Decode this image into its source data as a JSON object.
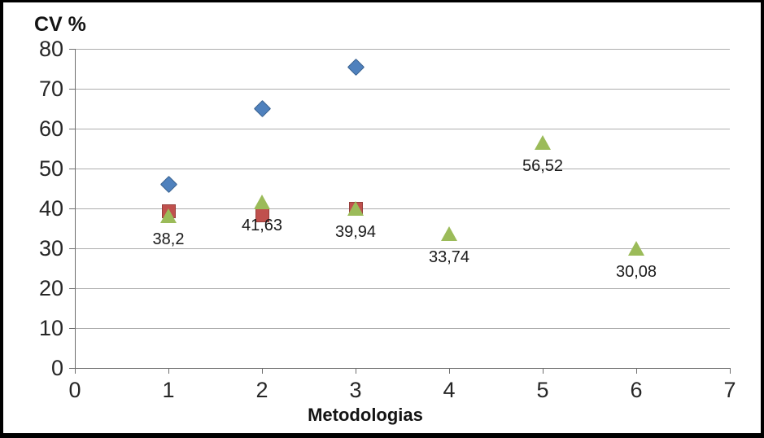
{
  "window": {
    "background": "#ffffff",
    "frame_border_color": "#000000"
  },
  "chart_data": {
    "type": "scatter",
    "title": "CV %",
    "xlabel": "Metodologias",
    "ylabel": "",
    "xlim": [
      0,
      7
    ],
    "ylim": [
      0,
      80
    ],
    "x_ticks": [
      0,
      1,
      2,
      3,
      4,
      5,
      6,
      7
    ],
    "y_ticks": [
      0,
      10,
      20,
      30,
      40,
      50,
      60,
      70,
      80
    ],
    "grid": "horizontal-only",
    "legend": "none",
    "colors": {
      "grid": "#aeaeae",
      "axis": "#6f6f6f",
      "text": "#262626",
      "series_blue": "#4f81bd",
      "series_red": "#c0504d",
      "series_green": "#9bbb59"
    },
    "series": [
      {
        "name": "series-1",
        "marker": "diamond",
        "color": "#4f81bd",
        "edge": "#38618f",
        "points": [
          {
            "x": 1,
            "y": 46
          },
          {
            "x": 2,
            "y": 65
          },
          {
            "x": 3,
            "y": 75.5
          }
        ]
      },
      {
        "name": "series-2",
        "marker": "square",
        "color": "#c0504d",
        "edge": "#963f3c",
        "points": [
          {
            "x": 1,
            "y": 39.3
          },
          {
            "x": 2,
            "y": 38.2
          },
          {
            "x": 3,
            "y": 40
          }
        ]
      },
      {
        "name": "series-3",
        "marker": "triangle",
        "color": "#9bbb59",
        "edge": "#7a9645",
        "points": [
          {
            "x": 1,
            "y": 38.2,
            "label": "38,2"
          },
          {
            "x": 2,
            "y": 41.63,
            "label": "41,63"
          },
          {
            "x": 3,
            "y": 39.94,
            "label": "39,94"
          },
          {
            "x": 4,
            "y": 33.74,
            "label": "33,74"
          },
          {
            "x": 5,
            "y": 56.52,
            "label": "56,52"
          },
          {
            "x": 6,
            "y": 30.08,
            "label": "30,08"
          }
        ]
      }
    ]
  }
}
